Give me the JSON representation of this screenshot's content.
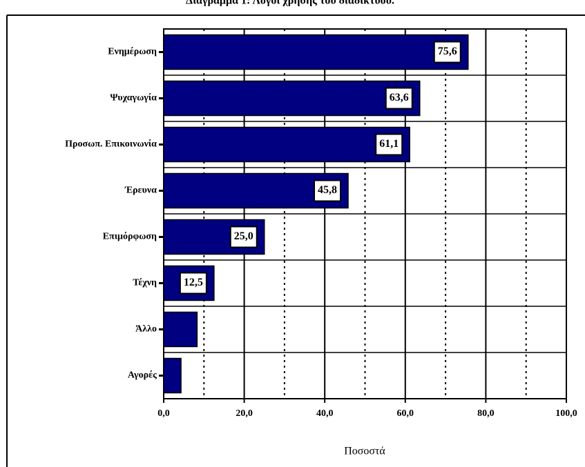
{
  "chart_data": {
    "type": "bar",
    "orientation": "horizontal",
    "title": "Διάγραμμα 1: Λόγοι χρήσης του διαδικτύου.",
    "x_label": "Ποσοστά",
    "categories": [
      "Ενημέρωση",
      "Ψυχαγωγία",
      "Προσωπ. Επικοινωνία",
      "Έρευνα",
      "Επιμόρφωση",
      "Τέχνη",
      "Άλλο",
      "Αγορές"
    ],
    "values": [
      75.6,
      63.6,
      61.1,
      45.8,
      25.0,
      12.5,
      8.3,
      4.3
    ],
    "value_labels": [
      "75,6",
      "63,6",
      "61,1",
      "45,8",
      "25,0",
      "12,5",
      null,
      null
    ],
    "color": "#000080",
    "xlim": [
      0,
      100
    ],
    "xticks": [
      {
        "value": 0,
        "label": "0,0"
      },
      {
        "value": 20,
        "label": "20,0"
      },
      {
        "value": 40,
        "label": "40,0"
      },
      {
        "value": 60,
        "label": "60,0"
      },
      {
        "value": 80,
        "label": "80,0"
      },
      {
        "value": 100,
        "label": "100,0"
      }
    ],
    "xminor": [
      10,
      30,
      50,
      70,
      90
    ],
    "grid": true
  }
}
